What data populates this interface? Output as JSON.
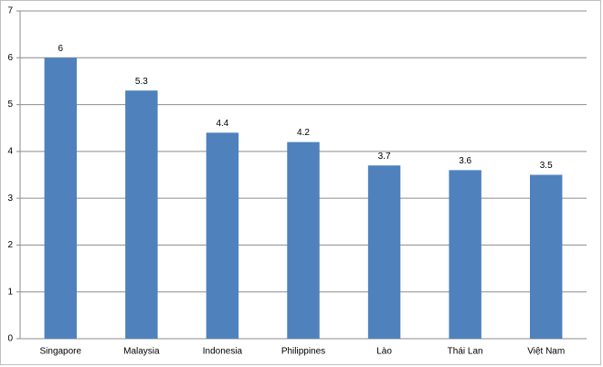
{
  "chart_data": {
    "type": "bar",
    "categories": [
      "Singapore",
      "Malaysia",
      "Indonesia",
      "Philippines",
      "Lào",
      "Thái Lan",
      "Việt Nam"
    ],
    "values": [
      6,
      5.3,
      4.4,
      4.2,
      3.7,
      3.6,
      3.5
    ],
    "color": "#4f81bd",
    "ylim": [
      0,
      7
    ],
    "yticks": [
      0,
      1,
      2,
      3,
      4,
      5,
      6,
      7
    ],
    "grid": true
  }
}
